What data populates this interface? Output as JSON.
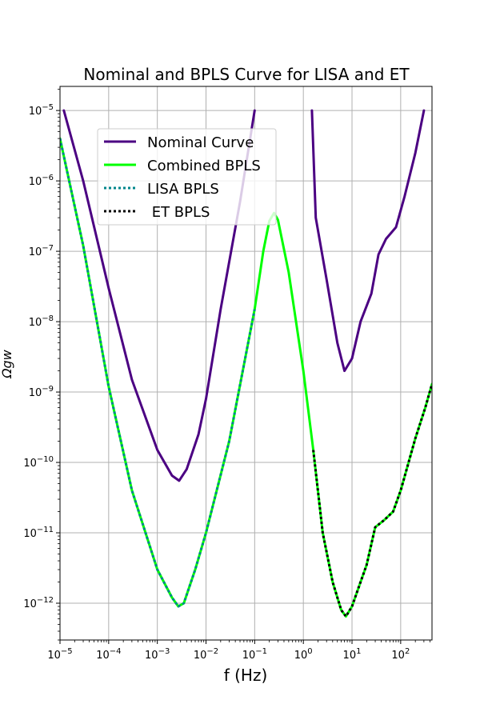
{
  "chart_data": {
    "type": "line",
    "title": "Nominal and BPLS Curve for LISA and ET",
    "xlabel": "f (Hz)",
    "ylabel": "Ωgw",
    "xscale": "log",
    "yscale": "log",
    "xlim": [
      1e-05,
      440
    ],
    "ylim": [
      3e-13,
      2.2e-05
    ],
    "grid": true,
    "legend": {
      "placement": "upper-left"
    },
    "x_ticks": [
      {
        "base": "10",
        "exp": "−5",
        "value": 1e-05
      },
      {
        "base": "10",
        "exp": "−4",
        "value": 0.0001
      },
      {
        "base": "10",
        "exp": "−3",
        "value": 0.001
      },
      {
        "base": "10",
        "exp": "−2",
        "value": 0.01
      },
      {
        "base": "10",
        "exp": "−1",
        "value": 0.1
      },
      {
        "base": "10",
        "exp": "0",
        "value": 1.0
      },
      {
        "base": "10",
        "exp": "1",
        "value": 10.0
      },
      {
        "base": "10",
        "exp": "2",
        "value": 100.0
      }
    ],
    "y_ticks": [
      {
        "base": "10",
        "exp": "−12",
        "value": 1e-12
      },
      {
        "base": "10",
        "exp": "−11",
        "value": 1e-11
      },
      {
        "base": "10",
        "exp": "−10",
        "value": 1e-10
      },
      {
        "base": "10",
        "exp": "−9",
        "value": 1e-09
      },
      {
        "base": "10",
        "exp": "−8",
        "value": 1e-08
      },
      {
        "base": "10",
        "exp": "−7",
        "value": 1e-07
      },
      {
        "base": "10",
        "exp": "−6",
        "value": 1e-06
      },
      {
        "base": "10",
        "exp": "−5",
        "value": 1e-05
      }
    ],
    "series": [
      {
        "name": "Nominal Curve",
        "color": "#4b0082",
        "style": "solid",
        "segments": [
          [
            [
              1.2e-05,
              1e-05
            ],
            [
              3e-05,
              1e-06
            ],
            [
              0.0001,
              3e-08
            ],
            [
              0.0003,
              1.5e-09
            ],
            [
              0.001,
              1.5e-10
            ],
            [
              0.002,
              6.5e-11
            ],
            [
              0.0028,
              5.5e-11
            ],
            [
              0.004,
              8e-11
            ],
            [
              0.007,
              2.5e-10
            ],
            [
              0.01,
              8e-10
            ],
            [
              0.02,
              1.5e-08
            ],
            [
              0.05,
              5e-07
            ],
            [
              0.1,
              1e-05
            ]
          ],
          [
            [
              1.5,
              1e-05
            ],
            [
              1.8,
              3e-07
            ],
            [
              3,
              4e-08
            ],
            [
              5,
              5e-09
            ],
            [
              7,
              2e-09
            ],
            [
              10,
              3e-09
            ],
            [
              15,
              1e-08
            ],
            [
              25,
              2.5e-08
            ],
            [
              35,
              9e-08
            ],
            [
              50,
              1.5e-07
            ],
            [
              80,
              2.2e-07
            ],
            [
              120,
              6e-07
            ],
            [
              200,
              2.5e-06
            ],
            [
              300,
              1e-05
            ]
          ]
        ]
      },
      {
        "name": "Combined BPLS",
        "color": "#00ff00",
        "style": "solid",
        "segments": [
          [
            [
              1e-05,
              4e-06
            ],
            [
              3e-05,
              1.2e-07
            ],
            [
              0.0001,
              1.2e-09
            ],
            [
              0.0003,
              4e-11
            ],
            [
              0.001,
              3e-12
            ],
            [
              0.002,
              1.2e-12
            ],
            [
              0.0027,
              9e-13
            ],
            [
              0.0035,
              1e-12
            ],
            [
              0.006,
              3e-12
            ],
            [
              0.01,
              1e-11
            ],
            [
              0.03,
              2e-10
            ],
            [
              0.1,
              1.5e-08
            ],
            [
              0.15,
              1e-07
            ],
            [
              0.2,
              2.7e-07
            ],
            [
              0.25,
              3.5e-07
            ],
            [
              0.3,
              2.8e-07
            ],
            [
              0.5,
              5e-08
            ],
            [
              1,
              2e-09
            ],
            [
              1.6,
              1.5e-10
            ],
            [
              2.5,
              1e-11
            ],
            [
              4,
              2e-12
            ],
            [
              6,
              8e-13
            ],
            [
              7.5,
              6.5e-13
            ],
            [
              10,
              9e-13
            ],
            [
              15,
              2e-12
            ],
            [
              20,
              3.5e-12
            ],
            [
              30,
              1.2e-11
            ],
            [
              45,
              1.5e-11
            ],
            [
              70,
              2e-11
            ],
            [
              100,
              4e-11
            ],
            [
              200,
              2.2e-10
            ],
            [
              320,
              6e-10
            ],
            [
              440,
              1.3e-09
            ]
          ]
        ]
      },
      {
        "name": "LISA BPLS",
        "color": "#00868b",
        "style": "dotted",
        "segments": [
          [
            [
              1e-05,
              4e-06
            ],
            [
              3e-05,
              1.2e-07
            ],
            [
              0.0001,
              1.2e-09
            ],
            [
              0.0003,
              4e-11
            ],
            [
              0.001,
              3e-12
            ],
            [
              0.002,
              1.2e-12
            ],
            [
              0.0027,
              9e-13
            ],
            [
              0.0035,
              1e-12
            ],
            [
              0.006,
              3e-12
            ],
            [
              0.01,
              1e-11
            ],
            [
              0.03,
              2e-10
            ],
            [
              0.1,
              1.5e-08
            ]
          ]
        ]
      },
      {
        "name": " ET BPLS",
        "color": "#000000",
        "style": "dotted",
        "segments": [
          [
            [
              1.6,
              1.5e-10
            ],
            [
              2.5,
              1e-11
            ],
            [
              4,
              2e-12
            ],
            [
              6,
              8e-13
            ],
            [
              7.5,
              6.5e-13
            ],
            [
              10,
              9e-13
            ],
            [
              15,
              2e-12
            ],
            [
              20,
              3.5e-12
            ],
            [
              30,
              1.2e-11
            ],
            [
              45,
              1.5e-11
            ],
            [
              70,
              2e-11
            ],
            [
              100,
              4e-11
            ],
            [
              200,
              2.2e-10
            ],
            [
              320,
              6e-10
            ],
            [
              440,
              1.3e-09
            ]
          ]
        ]
      }
    ]
  }
}
